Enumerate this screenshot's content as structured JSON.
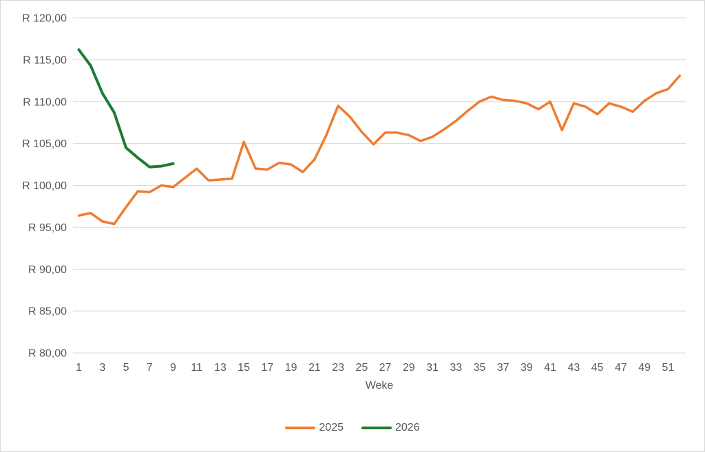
{
  "chart_data": {
    "type": "line",
    "title": "",
    "xlabel": "Weke",
    "ylim": [
      80,
      120
    ],
    "x_count": 52,
    "grid": true,
    "legend_position": "bottom",
    "text_color": "#595959",
    "gridline_color": "#d9d9d9",
    "y_ticks": [
      {
        "value": 120,
        "label": "R 120,00"
      },
      {
        "value": 115,
        "label": "R 115,00"
      },
      {
        "value": 110,
        "label": "R 110,00"
      },
      {
        "value": 105,
        "label": "R 105,00"
      },
      {
        "value": 100,
        "label": "R 100,00"
      },
      {
        "value": 95,
        "label": "R 95,00"
      },
      {
        "value": 90,
        "label": "R 90,00"
      },
      {
        "value": 85,
        "label": "R 85,00"
      },
      {
        "value": 80,
        "label": "R 80,00"
      }
    ],
    "x_tick_weeks": [
      1,
      3,
      5,
      7,
      9,
      11,
      13,
      15,
      17,
      19,
      21,
      23,
      25,
      27,
      29,
      31,
      33,
      35,
      37,
      39,
      41,
      43,
      45,
      47,
      49,
      51
    ],
    "series": [
      {
        "name": "2025",
        "color": "#ED7D31",
        "stroke_width": 3.5,
        "start_week": 1,
        "values": [
          96.4,
          96.7,
          95.7,
          95.4,
          97.4,
          99.3,
          99.2,
          100.0,
          99.8,
          100.9,
          102.0,
          100.6,
          100.7,
          100.8,
          105.2,
          102.0,
          101.9,
          102.7,
          102.5,
          101.6,
          103.1,
          106.0,
          109.5,
          108.2,
          106.4,
          104.9,
          106.3,
          106.3,
          106.0,
          105.3,
          105.8,
          106.7,
          107.7,
          108.9,
          110.0,
          110.6,
          110.2,
          110.1,
          109.8,
          109.1,
          110.0,
          106.6,
          109.8,
          109.4,
          108.5,
          109.8,
          109.4,
          108.8,
          110.1,
          111.0,
          111.5,
          113.1
        ]
      },
      {
        "name": "2026",
        "color": "#1E7B34",
        "stroke_width": 4,
        "start_week": 1,
        "values": [
          116.2,
          114.3,
          111.0,
          108.7,
          104.5,
          103.3,
          102.2,
          102.3,
          102.6
        ]
      }
    ]
  }
}
